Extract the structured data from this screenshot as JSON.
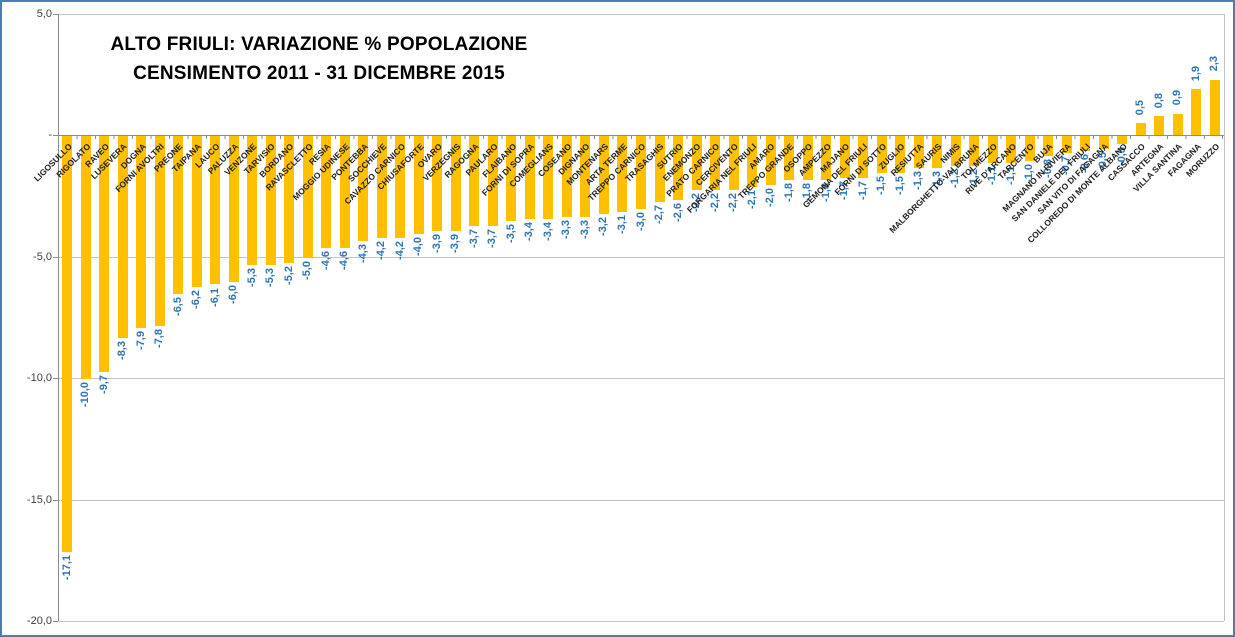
{
  "title": {
    "line1": "ALTO FRIULI: VARIAZIONE % POPOLAZIONE",
    "line2": "CENSIMENTO 2011 - 31 DICEMBRE 2015"
  },
  "colors": {
    "bar": "#FFC000",
    "value_label": "#2E74B5",
    "gridline": "#C3C3C3",
    "axis": "#8C8C8C",
    "border": "#4A7EBB"
  },
  "y_axis": {
    "tick_labels": [
      "5,0",
      "-",
      "-5,0",
      "-10,0",
      "-15,0",
      "-20,0"
    ],
    "tick_values": [
      5,
      0,
      -5,
      -10,
      -15,
      -20
    ]
  },
  "chart_data": {
    "type": "bar",
    "title": "ALTO FRIULI: VARIAZIONE % POPOLAZIONE CENSIMENTO 2011 - 31 DICEMBRE 2015",
    "xlabel": "",
    "ylabel": "",
    "ylim": [
      -20,
      5
    ],
    "grid": true,
    "legend": false,
    "categories": [
      "LIGOSULLO",
      "RIGOLATO",
      "RAVEO",
      "LUSEVERA",
      "DOGNA",
      "FORNI AVOLTRI",
      "PREONE",
      "TAIPANA",
      "LAUCO",
      "PALUZZA",
      "VENZONE",
      "TARVISIO",
      "BORDANO",
      "RAVASCLETTO",
      "RESIA",
      "MOGGIO UDINESE",
      "PONTEBBA",
      "SOCCHIEVE",
      "CAVAZZO CARNICO",
      "CHIUSAFORTE",
      "OVARO",
      "VERZEGNIS",
      "RAGOGNA",
      "PAULARO",
      "FLAIBANO",
      "FORNI DI SOPRA",
      "COMEGLIANS",
      "COSEANO",
      "DIGNANO",
      "MONTENARS",
      "ARTA TERME",
      "TREPPO CARNICO",
      "TRASAGHIS",
      "SUTRIO",
      "ENEMONZO",
      "PRATO CARNICO",
      "CERCIVENTO",
      "FORGARIA NEL FRIULI",
      "AMARO",
      "TREPPO GRANDE",
      "OSOPPO",
      "AMPEZZO",
      "MAJANO",
      "GEMONA DEL FRIULI",
      "FORNI DI SOTTO",
      "ZUGLIO",
      "RESIUTTA",
      "SAURIS",
      "NIMIS",
      "MALBORGHETTO-VALBRUNA",
      "TOLMEZZO",
      "RIVE D'ARCANO",
      "TARCENTO",
      "BUJA",
      "MAGNANO IN RIVIERA",
      "SAN DANIELE DEL FRIULI",
      "SAN VITO DI FAGAGNA",
      "COLLOREDO DI MONTE ALBANO",
      "CASSACCO",
      "ARTEGNA",
      "VILLA SANTINA",
      "FAGAGNA",
      "MORUZZO"
    ],
    "values": [
      -17.1,
      -10.0,
      -9.7,
      -8.3,
      -7.9,
      -7.8,
      -6.5,
      -6.2,
      -6.1,
      -6.0,
      -5.3,
      -5.3,
      -5.2,
      -5.0,
      -4.6,
      -4.6,
      -4.3,
      -4.2,
      -4.2,
      -4.0,
      -3.9,
      -3.9,
      -3.7,
      -3.7,
      -3.5,
      -3.4,
      -3.4,
      -3.3,
      -3.3,
      -3.2,
      -3.1,
      -3.0,
      -2.7,
      -2.6,
      -2.2,
      -2.2,
      -2.2,
      -2.1,
      -2.0,
      -1.8,
      -1.8,
      -1.8,
      -1.7,
      -1.7,
      -1.5,
      -1.5,
      -1.3,
      -1.3,
      -1.2,
      -1.2,
      -1.1,
      -1.1,
      -1.0,
      -0.8,
      -0.7,
      -0.6,
      -0.5,
      -0.3,
      0.5,
      0.8,
      0.9,
      1.9,
      2.3
    ],
    "value_labels": [
      "-17,1",
      "-10,0",
      "-9,7",
      "-8,3",
      "-7,9",
      "-7,8",
      "-6,5",
      "-6,2",
      "-6,1",
      "-6,0",
      "-5,3",
      "-5,3",
      "-5,2",
      "-5,0",
      "-4,6",
      "-4,6",
      "-4,3",
      "-4,2",
      "-4,2",
      "-4,0",
      "-3,9",
      "-3,9",
      "-3,7",
      "-3,7",
      "-3,5",
      "-3,4",
      "-3,4",
      "-3,3",
      "-3,3",
      "-3,2",
      "-3,1",
      "-3,0",
      "-2,7",
      "-2,6",
      "-2,2",
      "-2,2",
      "-2,2",
      "-2,1",
      "-2,0",
      "-1,8",
      "-1,8",
      "-1,8",
      "-1,7",
      "-1,7",
      "-1,5",
      "-1,5",
      "-1,3",
      "-1,3",
      "-1,2",
      "-1,2",
      "-1,1",
      "-1,1",
      "-1,0",
      "-0,8",
      "-0,7",
      "-0,6",
      "-0,5",
      "-0,3",
      "0,5",
      "0,8",
      "0,9",
      "1,9",
      "2,3"
    ]
  }
}
